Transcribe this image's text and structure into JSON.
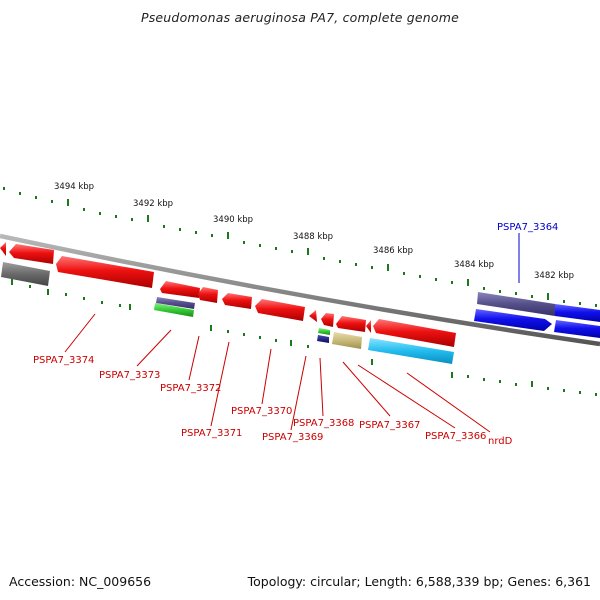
{
  "title": "Pseudomonas aeruginosa PA7, complete genome",
  "footer": {
    "accession": "Accession: NC_009656",
    "summary": "Topology: circular; Length: 6,588,339 bp; Genes: 6,361"
  },
  "ticks": [
    {
      "label": "3494 kbp"
    },
    {
      "label": "3492 kbp"
    },
    {
      "label": "3490 kbp"
    },
    {
      "label": "3488 kbp"
    },
    {
      "label": "3486 kbp"
    },
    {
      "label": "3484 kbp"
    },
    {
      "label": "3482 kbp"
    }
  ],
  "gene_labels": [
    {
      "text": "PSPA7_3364",
      "color": "#0000cc"
    },
    {
      "text": "PSPA7_3374",
      "color": "#cc0000"
    },
    {
      "text": "PSPA7_3373",
      "color": "#cc0000"
    },
    {
      "text": "PSPA7_3372",
      "color": "#cc0000"
    },
    {
      "text": "PSPA7_3371",
      "color": "#cc0000"
    },
    {
      "text": "PSPA7_3370",
      "color": "#cc0000"
    },
    {
      "text": "PSPA7_3369",
      "color": "#cc0000"
    },
    {
      "text": "PSPA7_3368",
      "color": "#cc0000"
    },
    {
      "text": "PSPA7_3367",
      "color": "#cc0000"
    },
    {
      "text": "PSPA7_3366",
      "color": "#cc0000"
    },
    {
      "text": "nrdD",
      "color": "#cc0000"
    }
  ],
  "colors": {
    "backbone": "#888888",
    "tick": "#1a7a1a",
    "gene_forward": "#ee1111",
    "gene_reverse_blue": "#1111ee",
    "gene_purple": "#55508a",
    "gene_grey": "#6a6a6a",
    "gene_green": "#33cc33",
    "gene_navy": "#101080",
    "gene_khaki": "#c8ba78",
    "gene_cyan": "#22bbee"
  }
}
